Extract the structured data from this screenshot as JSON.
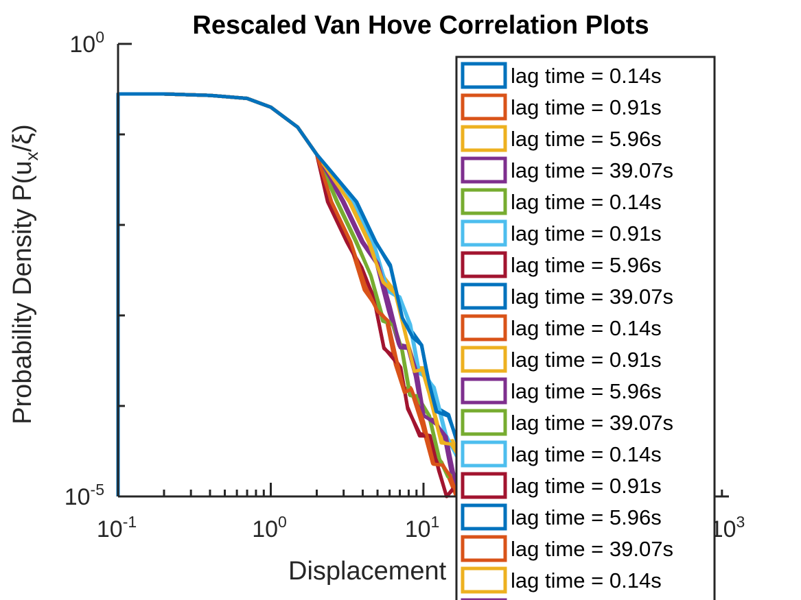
{
  "chart_data": {
    "type": "line",
    "title": "Rescaled Van Hove Correlation Plots",
    "xlabel": "Displacement",
    "ylabel": "Probability Density P(u",
    "ylabel_sub": "x",
    "ylabel_tail": "/ξ)",
    "xscale": "log",
    "yscale": "log",
    "xlim": [
      0.1,
      1000
    ],
    "ylim": [
      1e-05,
      1
    ],
    "x_ticks": [
      {
        "value": 0.1,
        "base": "10",
        "exp": "-1"
      },
      {
        "value": 1,
        "base": "10",
        "exp": "0"
      },
      {
        "value": 10,
        "base": "10",
        "exp": "1"
      },
      {
        "value": 1000,
        "base": "10",
        "exp": "3"
      }
    ],
    "y_ticks": [
      {
        "value": 1,
        "base": "10",
        "exp": "0"
      },
      {
        "value": 1e-05,
        "base": "10",
        "exp": "-5"
      }
    ],
    "grid": false,
    "legend_position": "top-right",
    "series": [
      {
        "name": "lag time = 0.14s",
        "color": "#0072BD"
      },
      {
        "name": "lag time = 0.91s",
        "color": "#D95319"
      },
      {
        "name": "lag time = 5.96s",
        "color": "#EDB120"
      },
      {
        "name": "lag time = 39.07s",
        "color": "#7E2F8E"
      },
      {
        "name": "lag time = 0.14s",
        "color": "#77AC30"
      },
      {
        "name": "lag time = 0.91s",
        "color": "#4DBEEE"
      },
      {
        "name": "lag time = 5.96s",
        "color": "#A2142F"
      },
      {
        "name": "lag time = 39.07s",
        "color": "#0072BD"
      },
      {
        "name": "lag time = 0.14s",
        "color": "#D95319"
      },
      {
        "name": "lag time = 0.91s",
        "color": "#EDB120"
      },
      {
        "name": "lag time = 5.96s",
        "color": "#7E2F8E"
      },
      {
        "name": "lag time = 39.07s",
        "color": "#77AC30"
      },
      {
        "name": "lag time = 0.14s",
        "color": "#4DBEEE"
      },
      {
        "name": "lag time = 0.91s",
        "color": "#A2142F"
      },
      {
        "name": "lag time = 5.96s",
        "color": "#0072BD"
      },
      {
        "name": "lag time = 39.07s",
        "color": "#D95319"
      },
      {
        "name": "lag time = 0.14s",
        "color": "#EDB120"
      },
      {
        "name": "",
        "color": "#7E2F8E"
      }
    ],
    "curve": {
      "x": [
        0.1,
        0.2,
        0.4,
        0.7,
        1.0,
        1.5,
        2.0,
        3.0,
        4.0,
        5.0,
        6.0,
        7.0,
        8.0,
        9.0,
        10.0,
        12.0,
        14.0,
        16.0,
        18.0,
        20.0
      ],
      "y": [
        0.28,
        0.28,
        0.27,
        0.25,
        0.2,
        0.12,
        0.06,
        0.018,
        0.0065,
        0.0028,
        0.0013,
        0.00065,
        0.00035,
        0.0002,
        0.00012,
        6e-05,
        3.5e-05,
        2e-05,
        1.3e-05,
        1e-05
      ]
    }
  }
}
